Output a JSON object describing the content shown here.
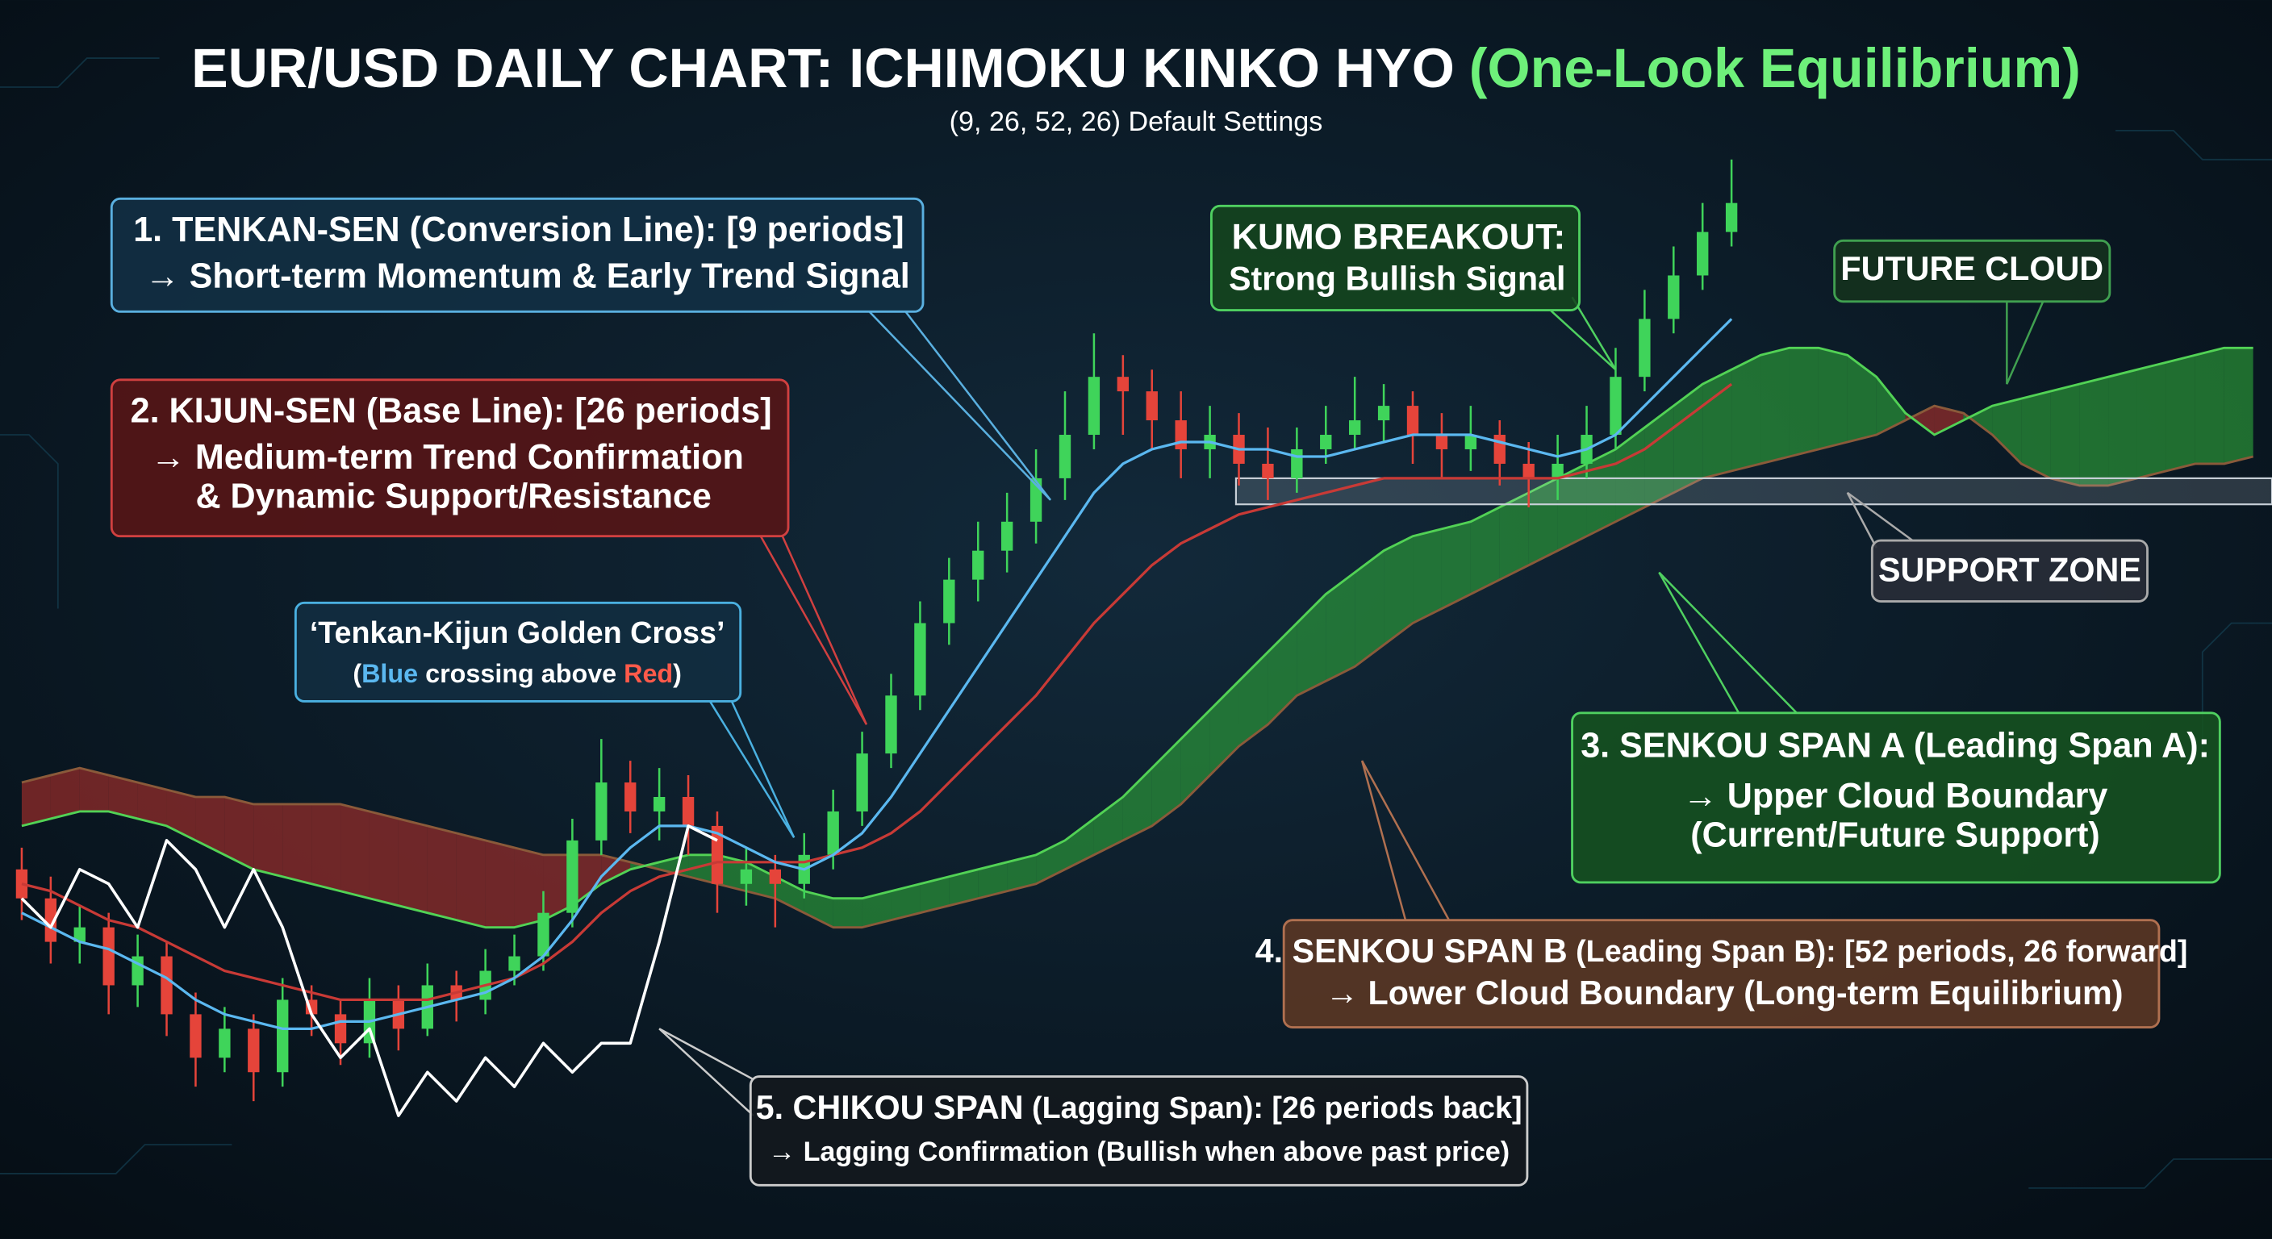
{
  "chart_data": {
    "type": "candlestick",
    "title": "EUR/USD DAILY CHART: ICHIMOKU KINKO HYO",
    "title_highlight": "(One-Look Equilibrium)",
    "subtitle": "(9, 26, 52, 26) Default Settings",
    "xlim": [
      0,
      77
    ],
    "ylim": [
      0,
      700
    ],
    "up_color": "#3fd45a",
    "down_color": "#e5443a",
    "open": [
      200,
      180,
      150,
      160,
      120,
      140,
      100,
      70,
      90,
      60,
      110,
      100,
      80,
      110,
      90,
      120,
      110,
      130,
      140,
      170,
      220,
      260,
      240,
      250,
      230,
      190,
      200,
      190,
      210,
      240,
      280,
      320,
      370,
      400,
      420,
      440,
      470,
      500,
      540,
      530,
      510,
      490,
      500,
      480,
      470,
      490,
      500,
      510,
      520,
      500,
      490,
      500,
      480,
      470,
      480,
      500,
      540,
      580,
      610,
      640
    ],
    "close": [
      180,
      150,
      160,
      120,
      140,
      100,
      70,
      90,
      60,
      110,
      100,
      80,
      110,
      90,
      120,
      110,
      130,
      140,
      170,
      220,
      260,
      240,
      250,
      230,
      190,
      200,
      190,
      210,
      240,
      280,
      320,
      370,
      400,
      420,
      440,
      470,
      500,
      540,
      530,
      510,
      490,
      500,
      480,
      470,
      490,
      500,
      510,
      520,
      500,
      490,
      500,
      480,
      470,
      480,
      500,
      540,
      580,
      610,
      640,
      660
    ],
    "high": [
      215,
      195,
      175,
      170,
      155,
      150,
      115,
      105,
      100,
      125,
      120,
      110,
      125,
      120,
      135,
      130,
      145,
      155,
      185,
      235,
      290,
      275,
      270,
      265,
      240,
      215,
      210,
      225,
      255,
      295,
      335,
      385,
      415,
      440,
      460,
      490,
      530,
      570,
      555,
      545,
      530,
      520,
      515,
      505,
      505,
      520,
      540,
      535,
      530,
      515,
      520,
      510,
      495,
      500,
      520,
      560,
      600,
      630,
      660,
      690
    ],
    "low": [
      165,
      135,
      135,
      100,
      105,
      85,
      50,
      60,
      40,
      50,
      85,
      65,
      70,
      75,
      85,
      95,
      100,
      120,
      130,
      160,
      210,
      225,
      220,
      210,
      170,
      175,
      160,
      180,
      200,
      230,
      270,
      310,
      355,
      385,
      405,
      425,
      455,
      490,
      500,
      490,
      470,
      470,
      465,
      455,
      460,
      480,
      490,
      495,
      480,
      470,
      475,
      465,
      450,
      455,
      470,
      490,
      530,
      570,
      600,
      630
    ],
    "tenkan": {
      "color": "#5bb8f0",
      "values": [
        170,
        160,
        150,
        145,
        135,
        125,
        110,
        100,
        95,
        90,
        90,
        95,
        95,
        100,
        105,
        110,
        115,
        125,
        140,
        165,
        195,
        215,
        230,
        230,
        225,
        215,
        205,
        200,
        210,
        225,
        250,
        280,
        310,
        340,
        370,
        400,
        430,
        460,
        480,
        490,
        495,
        495,
        490,
        490,
        485,
        485,
        490,
        495,
        500,
        500,
        500,
        495,
        490,
        485,
        490,
        500,
        520,
        540,
        560,
        580
      ]
    },
    "kijun": {
      "color": "#c83a36",
      "values": [
        190,
        185,
        175,
        165,
        160,
        150,
        140,
        130,
        125,
        120,
        115,
        110,
        110,
        110,
        110,
        115,
        120,
        125,
        135,
        150,
        170,
        185,
        195,
        200,
        205,
        205,
        205,
        205,
        210,
        215,
        225,
        240,
        260,
        280,
        300,
        320,
        345,
        370,
        390,
        410,
        425,
        435,
        445,
        450,
        455,
        460,
        465,
        470,
        470,
        470,
        470,
        470,
        470,
        470,
        475,
        480,
        490,
        505,
        520,
        535
      ]
    },
    "chikou": {
      "color": "#ffffff",
      "values": [
        180,
        160,
        200,
        190,
        160,
        220,
        200,
        160,
        200,
        160,
        100,
        70,
        90,
        30,
        60,
        40,
        70,
        50,
        80,
        60,
        80,
        80,
        150,
        230,
        220
      ]
    },
    "cloud": {
      "span_a_color": "#52d255",
      "span_b_color": "#8a5a3a",
      "bull_color": "#2fa83a",
      "bear_color": "#b3302c",
      "span_a": [
        230,
        235,
        240,
        240,
        235,
        230,
        220,
        210,
        200,
        195,
        190,
        185,
        180,
        175,
        170,
        165,
        160,
        160,
        165,
        175,
        190,
        200,
        205,
        210,
        210,
        205,
        195,
        185,
        180,
        180,
        185,
        190,
        195,
        200,
        205,
        210,
        220,
        235,
        250,
        270,
        290,
        310,
        330,
        350,
        370,
        390,
        405,
        420,
        430,
        435,
        440,
        450,
        460,
        470,
        480,
        490,
        505,
        520,
        535,
        545,
        555,
        560,
        560,
        555,
        540,
        515,
        500,
        510,
        520,
        525,
        530,
        535,
        540,
        545,
        550,
        555,
        560,
        560
      ],
      "span_b": [
        260,
        265,
        270,
        265,
        260,
        255,
        250,
        250,
        245,
        245,
        245,
        245,
        240,
        235,
        230,
        225,
        220,
        215,
        210,
        210,
        210,
        205,
        200,
        195,
        190,
        185,
        180,
        170,
        160,
        160,
        165,
        170,
        175,
        180,
        185,
        190,
        200,
        210,
        220,
        230,
        245,
        265,
        285,
        300,
        320,
        330,
        340,
        355,
        370,
        380,
        390,
        400,
        410,
        420,
        430,
        440,
        450,
        460,
        470,
        475,
        480,
        485,
        490,
        495,
        500,
        510,
        520,
        515,
        500,
        480,
        470,
        465,
        465,
        470,
        475,
        480,
        480,
        485
      ]
    },
    "support_zone": {
      "range": [
        452,
        470
      ],
      "label": "SUPPORT ZONE"
    },
    "annotations": {
      "tenkan": [
        "1. TENKAN-SEN (Conversion Line): [9 periods]",
        "→ Short-term Momentum & Early Trend Signal"
      ],
      "kijun": [
        "2. KIJUN-SEN (Base Line): [26 periods]",
        "→ Medium-term Trend Confirmation",
        "& Dynamic Support/Resistance"
      ],
      "golden_cross": {
        "title": "‘Tenkan-Kijun Golden Cross’",
        "detail": [
          "(",
          "Blue",
          " crossing above ",
          "Red",
          ")"
        ]
      },
      "kumo_breakout": [
        "KUMO BREAKOUT:",
        "Strong Bullish Signal"
      ],
      "future_cloud": "FUTURE CLOUD",
      "senkou_a": [
        "3. SENKOU SPAN A (Leading Span A):",
        "→ Upper Cloud Boundary",
        "(Current/Future Support)"
      ],
      "senkou_b": {
        "title": [
          "4. SENKOU SPAN B",
          " (Leading Span B): [52 periods, 26 forward]"
        ],
        "detail": "→ Lower Cloud Boundary (Long-term Equilibrium)"
      },
      "chikou": {
        "title": [
          "5. CHIKOU SPAN",
          " (Lagging Span): [26 periods back]"
        ],
        "detail": "→ Lagging Confirmation (Bullish when above past price)"
      }
    }
  }
}
